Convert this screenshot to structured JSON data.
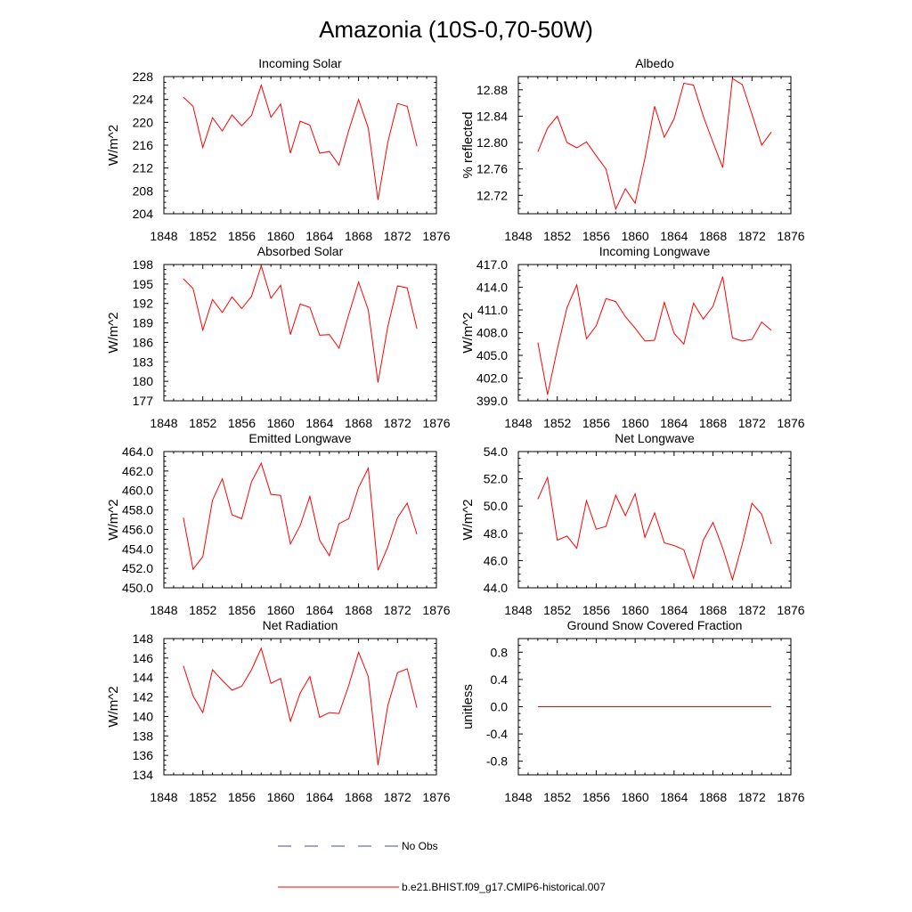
{
  "title": "Amazonia (10S-0,70-50W)",
  "legend": [
    {
      "label": "No Obs",
      "color": "#4a4aa0",
      "style": "dashed"
    },
    {
      "label": "b.e21.BHIST.f09_g17.CMIP6-historical.007",
      "color": "#ff0000",
      "style": "solid"
    }
  ],
  "chart_data": [
    {
      "type": "line",
      "title": "Incoming Solar",
      "ylabel": "W/m^2",
      "xlim": [
        1848,
        1876
      ],
      "xticks": [
        1848,
        1852,
        1856,
        1860,
        1864,
        1868,
        1872,
        1876
      ],
      "ylim": [
        204,
        228
      ],
      "yticks": [
        "204",
        "208",
        "212",
        "216",
        "220",
        "224",
        "228"
      ],
      "x": [
        1850,
        1851,
        1852,
        1853,
        1854,
        1855,
        1856,
        1857,
        1858,
        1859,
        1860,
        1861,
        1862,
        1863,
        1864,
        1865,
        1866,
        1867,
        1868,
        1869,
        1870,
        1871,
        1872,
        1873,
        1874
      ],
      "series": [
        {
          "color": "#ff0000",
          "values": [
            224.4,
            222.8,
            215.6,
            220.8,
            218.5,
            221.3,
            219.4,
            221.2,
            226.5,
            220.9,
            223.2,
            214.6,
            220.2,
            219.5,
            214.6,
            214.9,
            212.5,
            218.6,
            224.0,
            219.0,
            206.4,
            216.5,
            223.3,
            222.8,
            215.8
          ]
        }
      ]
    },
    {
      "type": "line",
      "title": "Albedo",
      "ylabel": "% reflected",
      "xlim": [
        1848,
        1876
      ],
      "xticks": [
        1848,
        1852,
        1856,
        1860,
        1864,
        1868,
        1872,
        1876
      ],
      "ylim": [
        12.692,
        12.9
      ],
      "yticks": [
        "12.72",
        "12.76",
        "12.80",
        "12.84",
        "12.88"
      ],
      "x": [
        1850,
        1851,
        1852,
        1853,
        1854,
        1855,
        1856,
        1857,
        1858,
        1859,
        1860,
        1861,
        1862,
        1863,
        1864,
        1865,
        1866,
        1867,
        1868,
        1869,
        1870,
        1871,
        1872,
        1873,
        1874
      ],
      "series": [
        {
          "color": "#ff0000",
          "values": [
            12.786,
            12.822,
            12.84,
            12.8,
            12.792,
            12.801,
            12.78,
            12.76,
            12.699,
            12.73,
            12.708,
            12.776,
            12.855,
            12.808,
            12.836,
            12.89,
            12.887,
            12.84,
            12.8,
            12.762,
            12.897,
            12.888,
            12.843,
            12.796,
            12.816
          ]
        }
      ]
    },
    {
      "type": "line",
      "title": "Absorbed Solar",
      "ylabel": "W/m^2",
      "xlim": [
        1848,
        1876
      ],
      "xticks": [
        1848,
        1852,
        1856,
        1860,
        1864,
        1868,
        1872,
        1876
      ],
      "ylim": [
        177,
        198
      ],
      "yticks": [
        "177",
        "180",
        "183",
        "186",
        "189",
        "192",
        "195",
        "198"
      ],
      "x": [
        1850,
        1851,
        1852,
        1853,
        1854,
        1855,
        1856,
        1857,
        1858,
        1859,
        1860,
        1861,
        1862,
        1863,
        1864,
        1865,
        1866,
        1867,
        1868,
        1869,
        1870,
        1871,
        1872,
        1873,
        1874
      ],
      "series": [
        {
          "color": "#ff0000",
          "values": [
            195.8,
            194.3,
            187.9,
            192.6,
            190.6,
            193.0,
            191.2,
            193.1,
            197.8,
            192.8,
            194.8,
            187.2,
            191.9,
            191.4,
            187.1,
            187.2,
            185.1,
            190.3,
            195.3,
            191.0,
            179.8,
            188.4,
            194.7,
            194.4,
            188.1
          ]
        }
      ]
    },
    {
      "type": "line",
      "title": "Incoming Longwave",
      "ylabel": "W/m^2",
      "xlim": [
        1848,
        1876
      ],
      "xticks": [
        1848,
        1852,
        1856,
        1860,
        1864,
        1868,
        1872,
        1876
      ],
      "ylim": [
        399,
        417
      ],
      "yticks": [
        "399.0",
        "402.0",
        "405.0",
        "408.0",
        "411.0",
        "414.0",
        "417.0"
      ],
      "x": [
        1850,
        1851,
        1852,
        1853,
        1854,
        1855,
        1856,
        1857,
        1858,
        1859,
        1860,
        1861,
        1862,
        1863,
        1864,
        1865,
        1866,
        1867,
        1868,
        1869,
        1870,
        1871,
        1872,
        1873,
        1874
      ],
      "series": [
        {
          "color": "#ff0000",
          "values": [
            406.7,
            399.8,
            405.8,
            411.3,
            414.3,
            407.2,
            408.9,
            412.5,
            412.1,
            410.1,
            408.6,
            406.9,
            407.0,
            412.0,
            407.9,
            406.5,
            411.9,
            409.8,
            411.5,
            415.4,
            407.3,
            406.9,
            407.1,
            409.4,
            408.3
          ]
        }
      ]
    },
    {
      "type": "line",
      "title": "Emitted Longwave",
      "ylabel": "W/m^2",
      "xlim": [
        1848,
        1876
      ],
      "xticks": [
        1848,
        1852,
        1856,
        1860,
        1864,
        1868,
        1872,
        1876
      ],
      "ylim": [
        450,
        464
      ],
      "yticks": [
        "450.0",
        "452.0",
        "454.0",
        "456.0",
        "458.0",
        "460.0",
        "462.0",
        "464.0"
      ],
      "x": [
        1850,
        1851,
        1852,
        1853,
        1854,
        1855,
        1856,
        1857,
        1858,
        1859,
        1860,
        1861,
        1862,
        1863,
        1864,
        1865,
        1866,
        1867,
        1868,
        1869,
        1870,
        1871,
        1872,
        1873,
        1874
      ],
      "series": [
        {
          "color": "#ff0000",
          "values": [
            457.2,
            451.9,
            453.2,
            459.0,
            461.2,
            457.5,
            457.1,
            460.9,
            462.8,
            459.6,
            459.5,
            454.5,
            456.4,
            459.4,
            454.9,
            453.3,
            456.6,
            457.1,
            460.3,
            462.3,
            451.8,
            454.2,
            457.2,
            458.7,
            455.5
          ]
        }
      ]
    },
    {
      "type": "line",
      "title": "Net Longwave",
      "ylabel": "W/m^2",
      "xlim": [
        1848,
        1876
      ],
      "xticks": [
        1848,
        1852,
        1856,
        1860,
        1864,
        1868,
        1872,
        1876
      ],
      "ylim": [
        44,
        54
      ],
      "yticks": [
        "44.0",
        "46.0",
        "48.0",
        "50.0",
        "52.0",
        "54.0"
      ],
      "x": [
        1850,
        1851,
        1852,
        1853,
        1854,
        1855,
        1856,
        1857,
        1858,
        1859,
        1860,
        1861,
        1862,
        1863,
        1864,
        1865,
        1866,
        1867,
        1868,
        1869,
        1870,
        1871,
        1872,
        1873,
        1874
      ],
      "series": [
        {
          "color": "#ff0000",
          "values": [
            50.5,
            52.1,
            47.5,
            47.8,
            46.9,
            50.4,
            48.3,
            48.5,
            50.8,
            49.3,
            50.9,
            47.7,
            49.5,
            47.3,
            47.1,
            46.8,
            44.7,
            47.5,
            48.8,
            46.9,
            44.6,
            47.2,
            50.2,
            49.4,
            47.2
          ]
        }
      ]
    },
    {
      "type": "line",
      "title": "Net Radiation",
      "ylabel": "W/m^2",
      "xlim": [
        1848,
        1876
      ],
      "xticks": [
        1848,
        1852,
        1856,
        1860,
        1864,
        1868,
        1872,
        1876
      ],
      "ylim": [
        134,
        148
      ],
      "yticks": [
        "134",
        "136",
        "138",
        "140",
        "142",
        "144",
        "146",
        "148"
      ],
      "x": [
        1850,
        1851,
        1852,
        1853,
        1854,
        1855,
        1856,
        1857,
        1858,
        1859,
        1860,
        1861,
        1862,
        1863,
        1864,
        1865,
        1866,
        1867,
        1868,
        1869,
        1870,
        1871,
        1872,
        1873,
        1874
      ],
      "series": [
        {
          "color": "#ff0000",
          "values": [
            145.2,
            142.1,
            140.4,
            144.8,
            143.7,
            142.7,
            143.1,
            144.8,
            147.0,
            143.4,
            143.9,
            139.5,
            142.4,
            144.1,
            139.9,
            140.4,
            140.3,
            143.2,
            146.6,
            144.1,
            135.0,
            141.1,
            144.5,
            144.9,
            140.9
          ]
        }
      ]
    },
    {
      "type": "line",
      "title": "Ground Snow Covered Fraction",
      "ylabel": "unitless",
      "xlim": [
        1848,
        1876
      ],
      "xticks": [
        1848,
        1852,
        1856,
        1860,
        1864,
        1868,
        1872,
        1876
      ],
      "ylim": [
        -1.0,
        1.0
      ],
      "yticks": [
        "-0.8",
        "-0.4",
        "0.0",
        "0.4",
        "0.8"
      ],
      "x": [
        1850,
        1851,
        1852,
        1853,
        1854,
        1855,
        1856,
        1857,
        1858,
        1859,
        1860,
        1861,
        1862,
        1863,
        1864,
        1865,
        1866,
        1867,
        1868,
        1869,
        1870,
        1871,
        1872,
        1873,
        1874
      ],
      "series": [
        {
          "color": "#ff0000",
          "values": [
            0,
            0,
            0,
            0,
            0,
            0,
            0,
            0,
            0,
            0,
            0,
            0,
            0,
            0,
            0,
            0,
            0,
            0,
            0,
            0,
            0,
            0,
            0,
            0,
            0
          ]
        }
      ]
    }
  ]
}
